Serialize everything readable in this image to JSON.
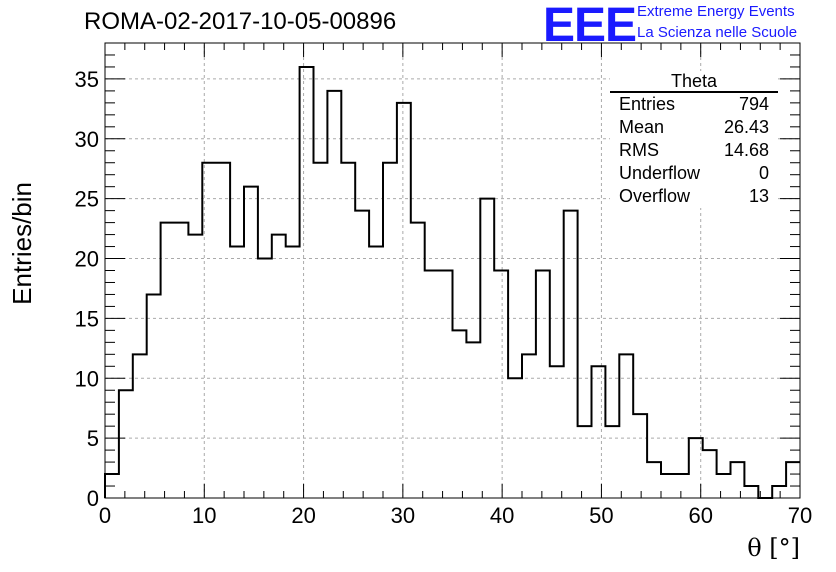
{
  "header": {
    "run_title": "ROMA-02-2017-10-05-00896",
    "logo_text": "EEE",
    "org_line1": "Extreme Energy Events",
    "org_line2": "La Scienza nelle Scuole",
    "brand_color": "#1a1aff"
  },
  "stats": {
    "title": "Theta",
    "rows": [
      {
        "label": "Entries",
        "value": "794"
      },
      {
        "label": "Mean",
        "value": "26.43"
      },
      {
        "label": "RMS",
        "value": "14.68"
      },
      {
        "label": "Underflow",
        "value": "0"
      },
      {
        "label": "Overflow",
        "value": "13"
      }
    ]
  },
  "chart_data": {
    "type": "bar",
    "style": "step-histogram",
    "xlabel": "θ [°]",
    "ylabel": "Entries/bin",
    "xlim": [
      0,
      70
    ],
    "ylim": [
      0,
      38
    ],
    "bin_width": 1.4,
    "x_ticks": [
      0,
      10,
      20,
      30,
      40,
      50,
      60,
      70
    ],
    "y_ticks": [
      0,
      5,
      10,
      15,
      20,
      25,
      30,
      35
    ],
    "grid": true,
    "values": [
      2,
      9,
      12,
      17,
      23,
      23,
      22,
      28,
      28,
      21,
      26,
      20,
      22,
      21,
      36,
      28,
      34,
      28,
      24,
      21,
      28,
      33,
      23,
      19,
      19,
      14,
      13,
      25,
      19,
      10,
      12,
      19,
      11,
      24,
      6,
      11,
      6,
      12,
      7,
      3,
      2,
      2,
      5,
      4,
      2,
      3,
      1,
      0,
      1,
      3
    ]
  }
}
